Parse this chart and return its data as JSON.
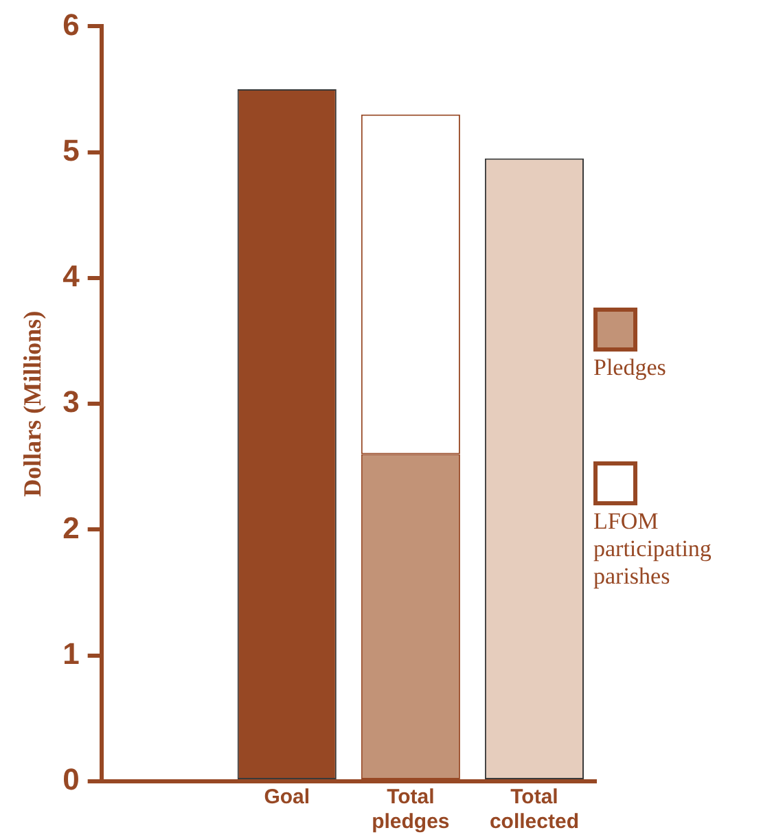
{
  "chart_data": {
    "type": "bar",
    "ylabel": "Dollars (Millions)",
    "categories": [
      null,
      "Goal",
      "Total pledges",
      "Total collected"
    ],
    "series": [
      {
        "colors": [
          null,
          "#974824",
          null,
          "#e6cdbd"
        ],
        "values": [
          null,
          5.5,
          null,
          4.95
        ]
      },
      {
        "name": "Pledges",
        "color": "#c29377",
        "values": [
          null,
          null,
          2.6,
          null
        ]
      },
      {
        "name": "LFOM participating parishes",
        "color": "#ffffff",
        "values": [
          null,
          null,
          2.7,
          null
        ]
      }
    ],
    "stacked": true,
    "ylim": [
      0,
      6
    ],
    "yticks": [
      0,
      1,
      2,
      3,
      4,
      5,
      6
    ],
    "grid": false,
    "legend": "right"
  }
}
